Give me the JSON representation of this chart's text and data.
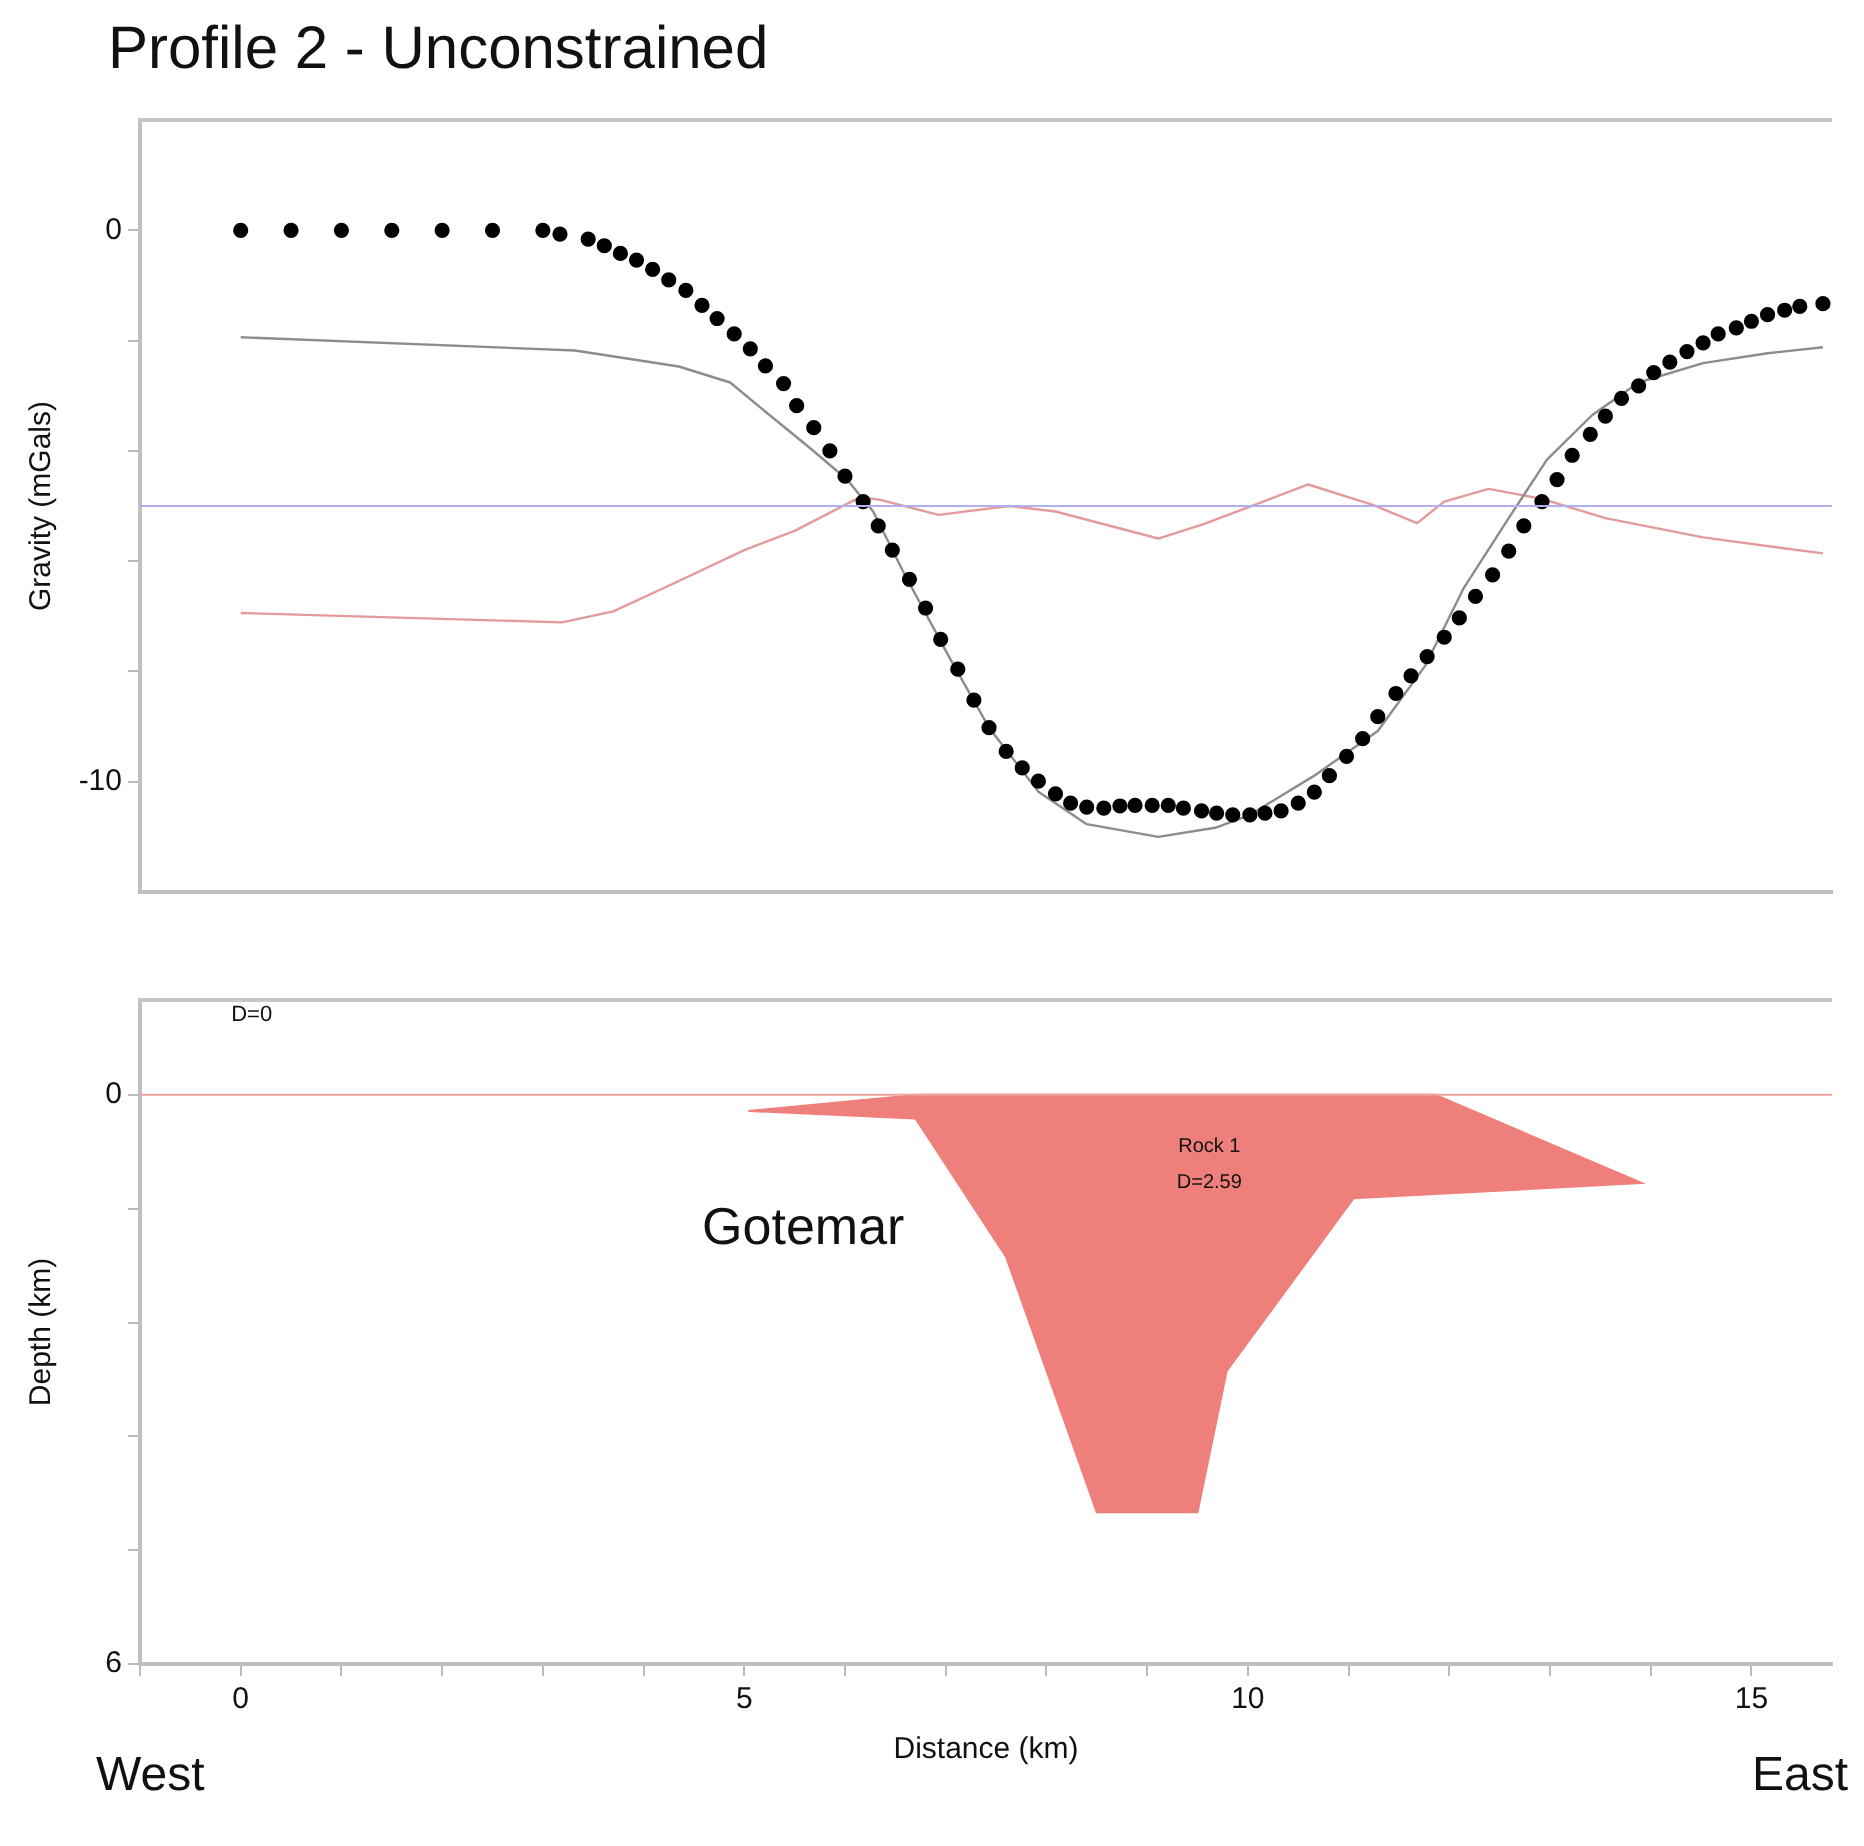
{
  "chart_data": [
    {
      "type": "line",
      "title": "Profile 2 - Unconstrained",
      "ylabel": "Gravity (mGals)",
      "xlim": [
        -1,
        15.8
      ],
      "ylim": [
        -12,
        2
      ],
      "yticks": [
        0,
        {
          "value": -2,
          "label": null
        },
        {
          "value": -4,
          "label": null
        },
        {
          "value": -6,
          "label": null
        },
        {
          "value": -8,
          "label": null
        },
        -10
      ],
      "tick_labels": "y",
      "grid": false,
      "legend": false,
      "ref_lines": [
        {
          "axis": "y",
          "value": -5,
          "color": "#b0b0ee"
        }
      ],
      "series": [
        {
          "type": "scatter",
          "marker": "circle",
          "color": "#000000",
          "x": [
            0,
            0.5,
            1,
            1.5,
            2,
            2.5,
            3,
            3.17,
            3.45,
            3.61,
            3.77,
            3.93,
            4.09,
            4.25,
            4.42,
            4.58,
            4.73,
            4.9,
            5.06,
            5.21,
            5.39,
            5.52,
            5.69,
            5.85,
            6.0,
            6.18,
            6.33,
            6.47,
            6.64,
            6.8,
            6.95,
            7.12,
            7.28,
            7.43,
            7.6,
            7.76,
            7.92,
            8.09,
            8.24,
            8.4,
            8.57,
            8.73,
            8.88,
            9.05,
            9.21,
            9.36,
            9.54,
            9.69,
            9.85,
            10.02,
            10.17,
            10.33,
            10.5,
            10.66,
            10.81,
            10.98,
            11.14,
            11.29,
            11.47,
            11.62,
            11.78,
            11.95,
            12.1,
            12.26,
            12.43,
            12.59,
            12.74,
            12.92,
            13.07,
            13.22,
            13.4,
            13.55,
            13.71,
            13.88,
            14.03,
            14.19,
            14.36,
            14.52,
            14.67,
            14.85,
            15.0,
            15.16,
            15.33,
            15.48,
            15.71
          ],
          "values": [
            0,
            0,
            0,
            0,
            0,
            0,
            0,
            -0.07,
            -0.16,
            -0.28,
            -0.42,
            -0.54,
            -0.71,
            -0.9,
            -1.09,
            -1.36,
            -1.6,
            -1.88,
            -2.15,
            -2.46,
            -2.78,
            -3.18,
            -3.58,
            -4.0,
            -4.46,
            -4.92,
            -5.36,
            -5.8,
            -6.33,
            -6.85,
            -7.42,
            -7.96,
            -8.52,
            -9.02,
            -9.45,
            -9.75,
            -9.99,
            -10.22,
            -10.39,
            -10.46,
            -10.48,
            -10.44,
            -10.43,
            -10.43,
            -10.43,
            -10.48,
            -10.53,
            -10.57,
            -10.6,
            -10.6,
            -10.57,
            -10.53,
            -10.39,
            -10.19,
            -9.89,
            -9.54,
            -9.22,
            -8.82,
            -8.4,
            -8.08,
            -7.73,
            -7.38,
            -7.03,
            -6.64,
            -6.25,
            -5.82,
            -5.36,
            -4.92,
            -4.52,
            -4.08,
            -3.7,
            -3.37,
            -3.05,
            -2.82,
            -2.58,
            -2.39,
            -2.2,
            -2.04,
            -1.88,
            -1.77,
            -1.65,
            -1.53,
            -1.45,
            -1.38,
            -1.33
          ]
        },
        {
          "color": "#8c8c8c",
          "x": [
            0,
            3.32,
            4.35,
            4.86,
            5.25,
            5.64,
            6.02,
            6.28,
            6.6,
            7.05,
            7.43,
            7.92,
            8.4,
            9.11,
            9.69,
            10.02,
            10.66,
            11.29,
            11.76,
            12.14,
            12.59,
            12.97,
            13.42,
            13.88,
            14.52,
            15.16,
            15.71
          ],
          "values": [
            -1.94,
            -2.18,
            -2.47,
            -2.76,
            -3.35,
            -3.93,
            -4.52,
            -5.1,
            -6.27,
            -7.79,
            -9.02,
            -10.18,
            -10.77,
            -11.0,
            -10.83,
            -10.6,
            -9.89,
            -9.08,
            -7.9,
            -6.5,
            -5.22,
            -4.16,
            -3.35,
            -2.76,
            -2.41,
            -2.23,
            -2.12
          ]
        },
        {
          "color": "#e49a9a",
          "x": [
            0,
            3.19,
            3.7,
            4.35,
            5.0,
            5.5,
            6.15,
            6.35,
            6.93,
            7.63,
            8.09,
            9.11,
            9.56,
            10.6,
            11.24,
            11.68,
            11.95,
            12.39,
            12.92,
            13.55,
            14.52,
            15.71
          ],
          "values": [
            -6.94,
            -7.11,
            -6.91,
            -6.36,
            -5.8,
            -5.45,
            -4.84,
            -4.89,
            -5.16,
            -5.0,
            -5.1,
            -5.59,
            -5.33,
            -4.61,
            -4.98,
            -5.31,
            -4.92,
            -4.69,
            -4.87,
            -5.22,
            -5.57,
            -5.86
          ]
        }
      ]
    },
    {
      "type": "area",
      "ylabel": "Depth (km)",
      "xlabel": "Distance (km)",
      "xlim": [
        -1,
        15.8
      ],
      "ylim": [
        6,
        -1
      ],
      "xticks": [
        {
          "value": -1,
          "label": null
        },
        0,
        {
          "value": 1,
          "label": null
        },
        {
          "value": 2,
          "label": null
        },
        {
          "value": 3,
          "label": null
        },
        {
          "value": 4,
          "label": null
        },
        5,
        {
          "value": 6,
          "label": null
        },
        {
          "value": 7,
          "label": null
        },
        {
          "value": 8,
          "label": null
        },
        {
          "value": 9,
          "label": null
        },
        10,
        {
          "value": 11,
          "label": null
        },
        {
          "value": 12,
          "label": null
        },
        {
          "value": 13,
          "label": null
        },
        {
          "value": 14,
          "label": null
        },
        15
      ],
      "yticks": [
        0,
        {
          "value": 1.2,
          "label": null
        },
        {
          "value": 2.4,
          "label": null
        },
        {
          "value": 3.6,
          "label": null
        },
        {
          "value": 4.8,
          "label": null
        },
        6
      ],
      "grid": false,
      "legend": false,
      "ref_lines": [
        {
          "axis": "y",
          "value": 0,
          "color": "#f0a0a0"
        }
      ],
      "annotations": [
        "D=0",
        "Gotemar",
        "Rock 1",
        "D=2.59",
        "West",
        "East"
      ],
      "series": [
        {
          "color": "#ef7f7b",
          "x": [
            5.04,
            6.7,
            7.6,
            8.5,
            9.5,
            9.79,
            11.05,
            13.91,
            11.86,
            6.73,
            5.04
          ],
          "values": [
            0.17,
            0.25,
            1.71,
            4.4,
            4.4,
            2.91,
            1.09,
            0.93,
            0,
            0,
            0.17
          ]
        }
      ]
    }
  ]
}
